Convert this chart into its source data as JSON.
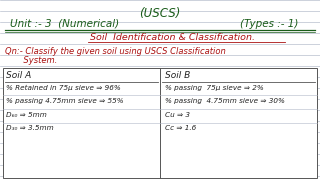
{
  "bg_color": "#ffffff",
  "line_color": "#b0b8c8",
  "title_top": "(USCS)",
  "line1_left": "Unit :- 3  (Numerical)",
  "line1_right": "(Types :- 1)",
  "line2": "Soil  Identification & Classification.",
  "qn_line1": "Qn:- Classify the given soil using USCS Classification",
  "qn_line2": "       System.",
  "col_left_header": "Soil A",
  "col_right_header": "Soil B",
  "col_left": [
    "% Retained in 75μ sieve ⇒ 96%",
    "% passing 4.75mm sieve ⇒ 55%",
    "D₆₀ ⇒ 5mm",
    "D₃₀ ⇒ 3.5mm"
  ],
  "col_right": [
    "% passing  75μ sieve ⇒ 2%",
    "% passing  4.75mm sieve ⇒ 30%",
    "Cu ⇒ 3",
    "Cc ⇒ 1.6"
  ],
  "dark": "#222222",
  "green": "#1a5c1a",
  "red": "#aa1111",
  "table_line": "#555555"
}
